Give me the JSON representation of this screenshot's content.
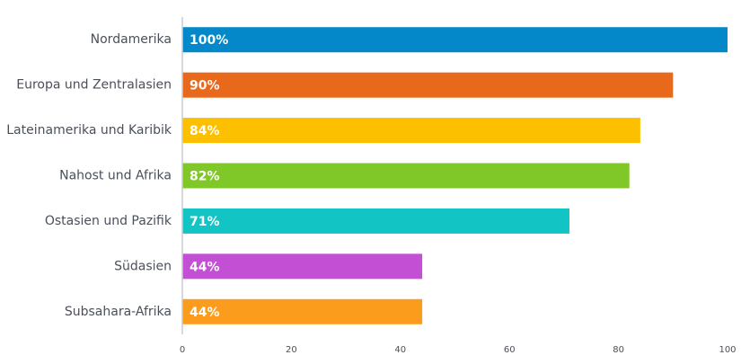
{
  "chart_data": {
    "type": "bar",
    "orientation": "horizontal",
    "title": "",
    "xlabel": "",
    "ylabel": "",
    "xlim": [
      0,
      100
    ],
    "ticks": [
      0,
      20,
      40,
      60,
      80,
      100
    ],
    "grid": false,
    "categories": [
      "Nordamerika",
      "Europa und Zentralasien",
      "Lateinamerika und Karibik",
      "Nahost und Afrika",
      "Ostasien und Pazifik",
      "Südasien",
      "Subsahara-Afrika"
    ],
    "values": [
      100,
      90,
      84,
      82,
      71,
      44,
      44
    ],
    "value_labels": [
      "100%",
      "90%",
      "84%",
      "82%",
      "71%",
      "44%",
      "44%"
    ],
    "colors": [
      "#0488c9",
      "#e8691c",
      "#fcc000",
      "#80c828",
      "#13c4c4",
      "#c24fd4",
      "#fc9c1c"
    ]
  }
}
